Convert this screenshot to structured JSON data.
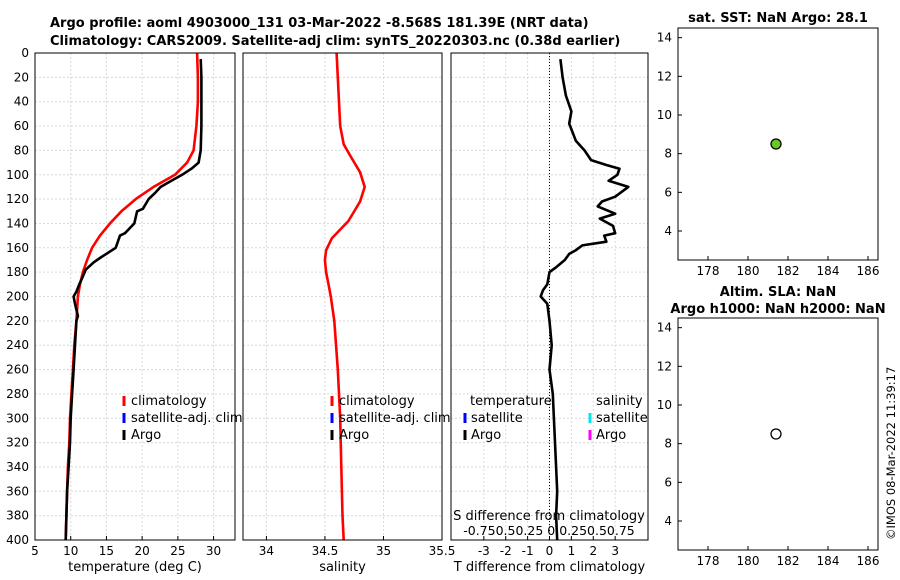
{
  "header": {
    "line1": "Argo profile: aoml 4903000_131 03-Mar-2022 -8.568S 181.39E (NRT data)",
    "line2": "Climatology: CARS2009. Satellite-adj clim: synTS_20220303.nc (0.38d earlier)"
  },
  "side_label": "©IMOS 08-Mar-2022 11:39:17",
  "colors": {
    "climatology": "#ff0000",
    "satellite_adj": "#0000ff",
    "argo": "#000000",
    "sat_s": "#00e5ee",
    "argo_s": "#ff00ff",
    "sst_marker": "#66cc22"
  },
  "chart_data": [
    {
      "id": "temperature",
      "type": "line",
      "xlabel": "temperature (deg C)",
      "xlim": [
        5,
        33
      ],
      "ylim": [
        0,
        400
      ],
      "xticks": [
        "5",
        "10",
        "15",
        "20",
        "25",
        "30"
      ],
      "xtick_values": [
        5,
        10,
        15,
        20,
        25,
        30
      ],
      "yticks": [
        "0",
        "20",
        "40",
        "60",
        "80",
        "100",
        "120",
        "140",
        "160",
        "180",
        "200",
        "220",
        "240",
        "260",
        "280",
        "300",
        "320",
        "340",
        "360",
        "380",
        "400"
      ],
      "legend": [
        "climatology",
        "satellite-adj. clim",
        "Argo"
      ],
      "series": [
        {
          "name": "climatology",
          "points": [
            [
              27.7,
              0
            ],
            [
              27.8,
              20
            ],
            [
              27.8,
              40
            ],
            [
              27.6,
              60
            ],
            [
              27.2,
              80
            ],
            [
              26.3,
              90
            ],
            [
              24.6,
              100
            ],
            [
              21.6,
              110
            ],
            [
              19.1,
              120
            ],
            [
              17.1,
              130
            ],
            [
              15.5,
              140
            ],
            [
              14.1,
              150
            ],
            [
              13.0,
              160
            ],
            [
              12.3,
              170
            ],
            [
              11.7,
              180
            ],
            [
              11.3,
              190
            ],
            [
              11.0,
              200
            ],
            [
              10.8,
              220
            ],
            [
              10.5,
              240
            ],
            [
              10.3,
              260
            ],
            [
              10.1,
              280
            ],
            [
              9.9,
              300
            ],
            [
              9.8,
              320
            ],
            [
              9.6,
              340
            ],
            [
              9.5,
              360
            ],
            [
              9.4,
              380
            ],
            [
              9.3,
              400
            ]
          ]
        },
        {
          "name": "Argo",
          "points": [
            [
              28.2,
              5
            ],
            [
              28.3,
              20
            ],
            [
              28.3,
              40
            ],
            [
              28.3,
              60
            ],
            [
              28.2,
              80
            ],
            [
              27.9,
              90
            ],
            [
              26.9,
              95
            ],
            [
              25.6,
              100
            ],
            [
              24.1,
              105
            ],
            [
              22.6,
              110
            ],
            [
              21.8,
              115
            ],
            [
              20.9,
              120
            ],
            [
              20.1,
              128
            ],
            [
              19.3,
              130
            ],
            [
              18.9,
              140
            ],
            [
              17.6,
              148
            ],
            [
              16.9,
              150
            ],
            [
              16.3,
              160
            ],
            [
              14.2,
              168
            ],
            [
              13.2,
              172
            ],
            [
              12.1,
              178
            ],
            [
              11.6,
              185
            ],
            [
              11.2,
              190
            ],
            [
              10.8,
              196
            ],
            [
              10.4,
              200
            ],
            [
              10.6,
              206
            ],
            [
              11.0,
              216
            ],
            [
              10.8,
              220
            ],
            [
              10.6,
              240
            ],
            [
              10.4,
              260
            ],
            [
              10.2,
              280
            ],
            [
              10.0,
              300
            ],
            [
              9.9,
              320
            ],
            [
              9.7,
              340
            ],
            [
              9.5,
              360
            ],
            [
              9.4,
              380
            ],
            [
              9.3,
              400
            ]
          ]
        }
      ]
    },
    {
      "id": "salinity",
      "type": "line",
      "xlabel": "salinity",
      "xlim": [
        33.8,
        35.5
      ],
      "ylim": [
        0,
        400
      ],
      "xticks": [
        "34",
        "34.5",
        "35",
        "35.5"
      ],
      "xtick_values": [
        34,
        34.5,
        35,
        35.5
      ],
      "legend": [
        "climatology",
        "satellite-adj. clim",
        "Argo"
      ],
      "series": [
        {
          "name": "climatology",
          "points": [
            [
              34.6,
              0
            ],
            [
              34.61,
              20
            ],
            [
              34.62,
              40
            ],
            [
              34.63,
              60
            ],
            [
              34.66,
              75
            ],
            [
              34.72,
              85
            ],
            [
              34.8,
              98
            ],
            [
              34.84,
              110
            ],
            [
              34.8,
              122
            ],
            [
              34.7,
              138
            ],
            [
              34.56,
              152
            ],
            [
              34.51,
              162
            ],
            [
              34.5,
              170
            ],
            [
              34.51,
              180
            ],
            [
              34.53,
              190
            ],
            [
              34.55,
              200
            ],
            [
              34.58,
              220
            ],
            [
              34.61,
              260
            ],
            [
              34.63,
              300
            ],
            [
              34.64,
              340
            ],
            [
              34.65,
              380
            ],
            [
              34.66,
              400
            ]
          ]
        }
      ]
    },
    {
      "id": "difference",
      "type": "line",
      "xlabel": "T difference from climatology",
      "xlabel_top": "S difference from climatology",
      "xlim": [
        -4.5,
        4.5
      ],
      "ylim": [
        0,
        400
      ],
      "xticks": [
        "-3",
        "-2",
        "-1",
        "0",
        "1",
        "2",
        "3"
      ],
      "xtick_values": [
        -3,
        -2,
        -1,
        0,
        1,
        2,
        3
      ],
      "s_ticks": "-0.750.50.25  0  0.250.50.75",
      "legend_t_title": "temperature",
      "legend_s_title": "salinity",
      "legend_t": [
        "satellite",
        "Argo"
      ],
      "legend_s": [
        "satellite",
        "Argo"
      ],
      "series": [
        {
          "name": "T difference Argo",
          "points": [
            [
              0.5,
              5
            ],
            [
              0.6,
              20
            ],
            [
              0.75,
              35
            ],
            [
              1.0,
              48
            ],
            [
              0.9,
              58
            ],
            [
              1.2,
              72
            ],
            [
              1.6,
              80
            ],
            [
              1.9,
              88
            ],
            [
              2.6,
              92
            ],
            [
              3.2,
              95
            ],
            [
              3.1,
              100
            ],
            [
              2.7,
              105
            ],
            [
              3.6,
              110
            ],
            [
              3.0,
              118
            ],
            [
              2.4,
              122
            ],
            [
              2.2,
              126
            ],
            [
              3.0,
              132
            ],
            [
              2.3,
              136
            ],
            [
              2.9,
              142
            ],
            [
              3.0,
              148
            ],
            [
              2.5,
              150
            ],
            [
              2.6,
              155
            ],
            [
              1.5,
              158
            ],
            [
              1.2,
              162
            ],
            [
              0.9,
              165
            ],
            [
              0.7,
              170
            ],
            [
              0.3,
              176
            ],
            [
              0.0,
              180
            ],
            [
              -0.1,
              190
            ],
            [
              -0.3,
              195
            ],
            [
              -0.4,
              200
            ],
            [
              -0.1,
              206
            ],
            [
              0.0,
              220
            ],
            [
              0.1,
              240
            ],
            [
              0.0,
              260
            ],
            [
              0.15,
              280
            ],
            [
              0.2,
              300
            ],
            [
              0.25,
              320
            ],
            [
              0.3,
              340
            ],
            [
              0.35,
              360
            ],
            [
              0.3,
              380
            ],
            [
              0.35,
              400
            ]
          ]
        }
      ]
    },
    {
      "id": "sst",
      "type": "scatter",
      "title": "sat. SST: NaN Argo: 28.1",
      "xlim": [
        176.5,
        186.5
      ],
      "ylim": [
        2.5,
        14.5
      ],
      "xticks": [
        "178",
        "180",
        "182",
        "184",
        "186"
      ],
      "xtick_values": [
        178,
        180,
        182,
        184,
        186
      ],
      "yticks": [
        "4",
        "6",
        "8",
        "10",
        "12",
        "14"
      ],
      "ytick_values": [
        4,
        6,
        8,
        10,
        12,
        14
      ],
      "points": [
        [
          181.4,
          8.5
        ]
      ]
    },
    {
      "id": "sla",
      "type": "scatter",
      "title": "Altim. SLA: NaN",
      "title2": "Argo h1000: NaN h2000: NaN",
      "xlim": [
        176.5,
        186.5
      ],
      "ylim": [
        2.5,
        14.5
      ],
      "xticks": [
        "178",
        "180",
        "182",
        "184",
        "186"
      ],
      "xtick_values": [
        178,
        180,
        182,
        184,
        186
      ],
      "yticks": [
        "4",
        "6",
        "8",
        "10",
        "12",
        "14"
      ],
      "ytick_values": [
        4,
        6,
        8,
        10,
        12,
        14
      ],
      "points": [
        [
          181.4,
          8.5
        ]
      ]
    }
  ]
}
